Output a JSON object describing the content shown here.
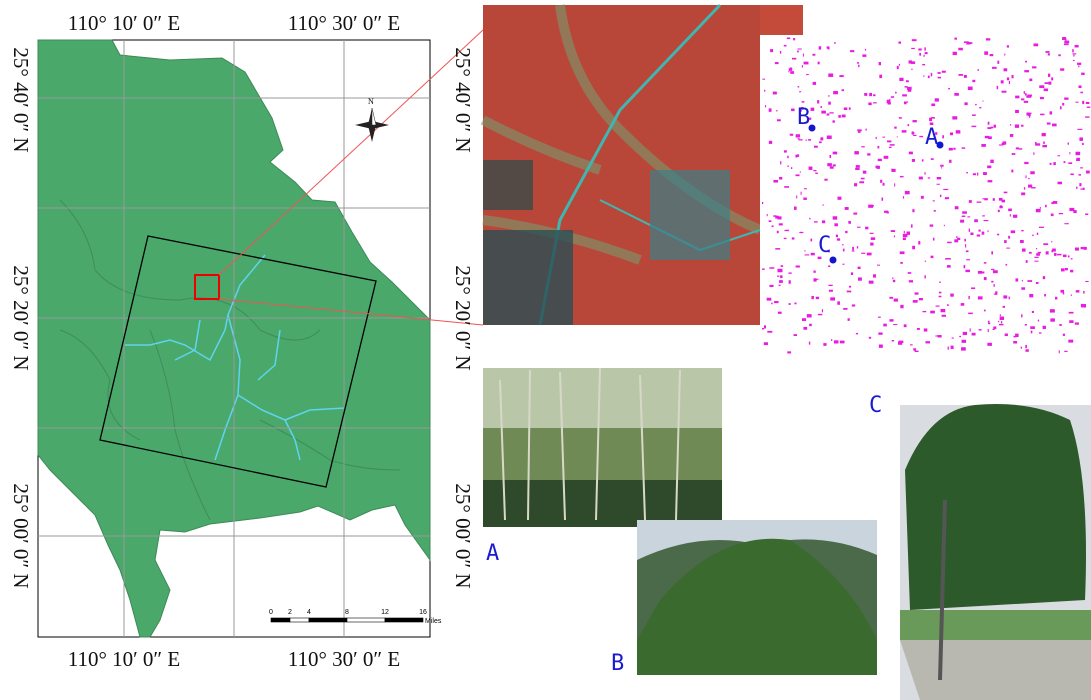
{
  "map": {
    "top_labels": [
      "110° 10′ 0″ E",
      "110° 30′ 0″ E"
    ],
    "bottom_labels": [
      "110° 10′ 0″ E",
      "110° 30′ 0″ E"
    ],
    "left_labels": [
      "25° 40′ 0″ N",
      "25° 20′ 0″ N",
      "25° 00′ 0″ N"
    ],
    "right_labels": [
      "25° 40′ 0″ N",
      "25° 20′ 0″ N",
      "25° 00′ 0″ N"
    ],
    "north": "N",
    "scale": {
      "ticks": [
        0,
        2,
        4,
        8,
        12,
        16
      ],
      "unit": "Miles"
    }
  },
  "classification_points": [
    "A",
    "B",
    "C"
  ],
  "photo_labels": [
    "A",
    "B",
    "C"
  ]
}
